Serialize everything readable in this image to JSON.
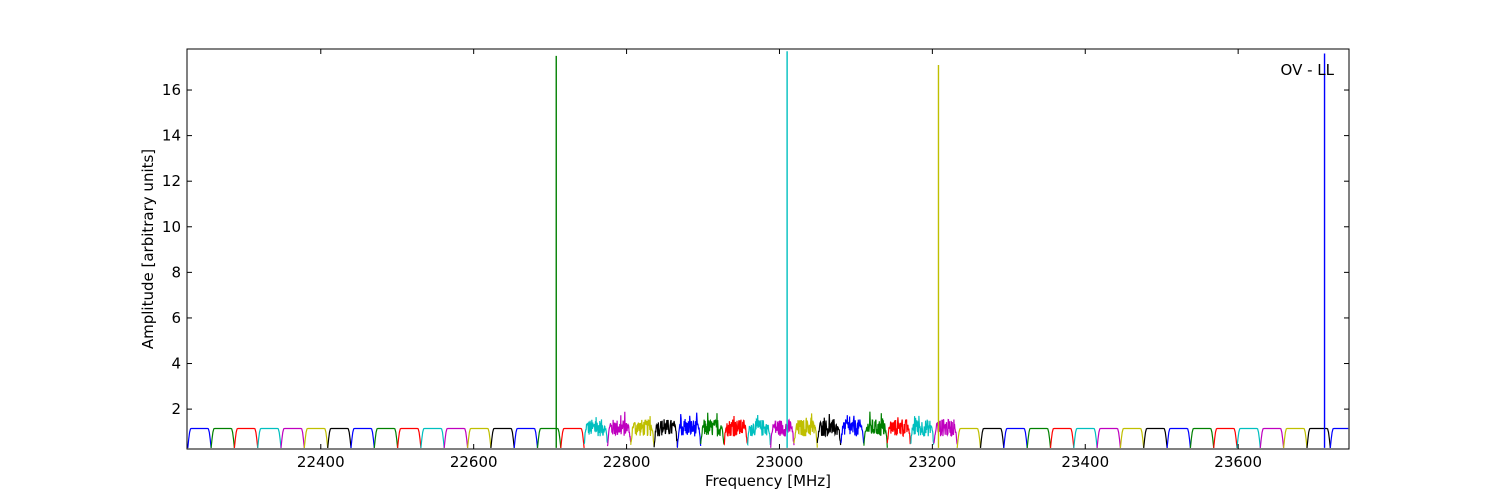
{
  "chart_data": {
    "type": "line",
    "annotation": "OV - LL",
    "xlabel": "Frequency [MHz]",
    "ylabel": "Amplitude [arbitrary units]",
    "xlim": [
      22225,
      23745
    ],
    "ylim": [
      0.25,
      17.8
    ],
    "xticks": [
      22400,
      22600,
      22800,
      23000,
      23200,
      23400,
      23600
    ],
    "yticks": [
      2,
      4,
      6,
      8,
      10,
      12,
      14,
      16
    ],
    "grid": false,
    "legend": "none",
    "band_start": 22226,
    "band_width": 30.5,
    "band_colors": [
      "#0000ff",
      "#008000",
      "#ff0000",
      "#00bfbf",
      "#bf00bf",
      "#bfbf00",
      "#000000"
    ],
    "noisy_band_range": [
      22730,
      23245
    ],
    "spikes": [
      {
        "x": 22708,
        "y": 17.5,
        "color": "#008000"
      },
      {
        "x": 23010,
        "y": 17.7,
        "color": "#00bfbf"
      },
      {
        "x": 23208,
        "y": 17.1,
        "color": "#bfbf00"
      },
      {
        "x": 23713,
        "y": 17.6,
        "color": "#0000ff"
      }
    ]
  }
}
